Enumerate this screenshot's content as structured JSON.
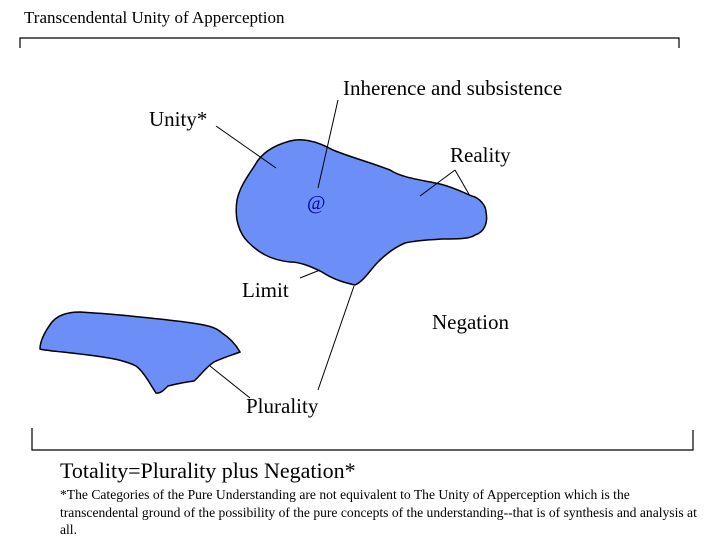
{
  "title": "Transcendental Unity of Apperception",
  "labels": {
    "inherence": "Inherence and subsistence",
    "unity": "Unity*",
    "reality": "Reality",
    "limit": "Limit",
    "negation": "Negation",
    "plurality": "Plurality",
    "at_symbol": "@"
  },
  "totality": "Totality=Plurality plus Negation*",
  "footnote": "*The Categories of the Pure Understanding are not equivalent to The Unity of Apperception which is the transcendental ground of the possibility of the pure concepts of the understanding--that is of synthesis and analysis at all.",
  "colors": {
    "shape_fill": "#6b8ff7",
    "stroke": "#000000"
  }
}
